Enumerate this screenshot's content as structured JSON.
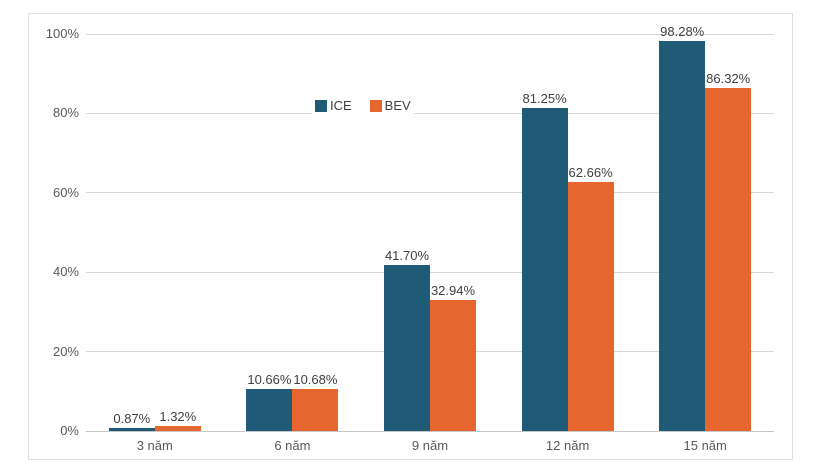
{
  "chart_data": {
    "type": "bar",
    "categories": [
      "3 năm",
      "6 năm",
      "9 năm",
      "12 năm",
      "15 năm"
    ],
    "series": [
      {
        "name": "ICE",
        "color": "#1F5B77",
        "values": [
          0.87,
          10.66,
          41.7,
          81.25,
          98.28
        ],
        "labels": [
          "0.87%",
          "10.66%",
          "41.70%",
          "81.25%",
          "98.28%"
        ]
      },
      {
        "name": "BEV",
        "color": "#E5662F",
        "values": [
          1.32,
          10.68,
          32.94,
          62.66,
          86.32
        ],
        "labels": [
          "1.32%",
          "10.68%",
          "32.94%",
          "62.66%",
          "86.32%"
        ]
      }
    ],
    "ylim": [
      0,
      100
    ],
    "yticks": [
      {
        "value": 0,
        "label": "0%"
      },
      {
        "value": 20,
        "label": "20%"
      },
      {
        "value": 40,
        "label": "40%"
      },
      {
        "value": 60,
        "label": "60%"
      },
      {
        "value": 80,
        "label": "80%"
      },
      {
        "value": 100,
        "label": "100%"
      }
    ],
    "grid": true,
    "legend_position": "top-center",
    "colors": {
      "gridline": "#D9D9D9",
      "baseline": "#C6C6C6",
      "axis_text": "#595959",
      "value_text": "#3F3F3F",
      "frame_border": "#E0E0E0",
      "background": "#FFFFFF"
    }
  }
}
